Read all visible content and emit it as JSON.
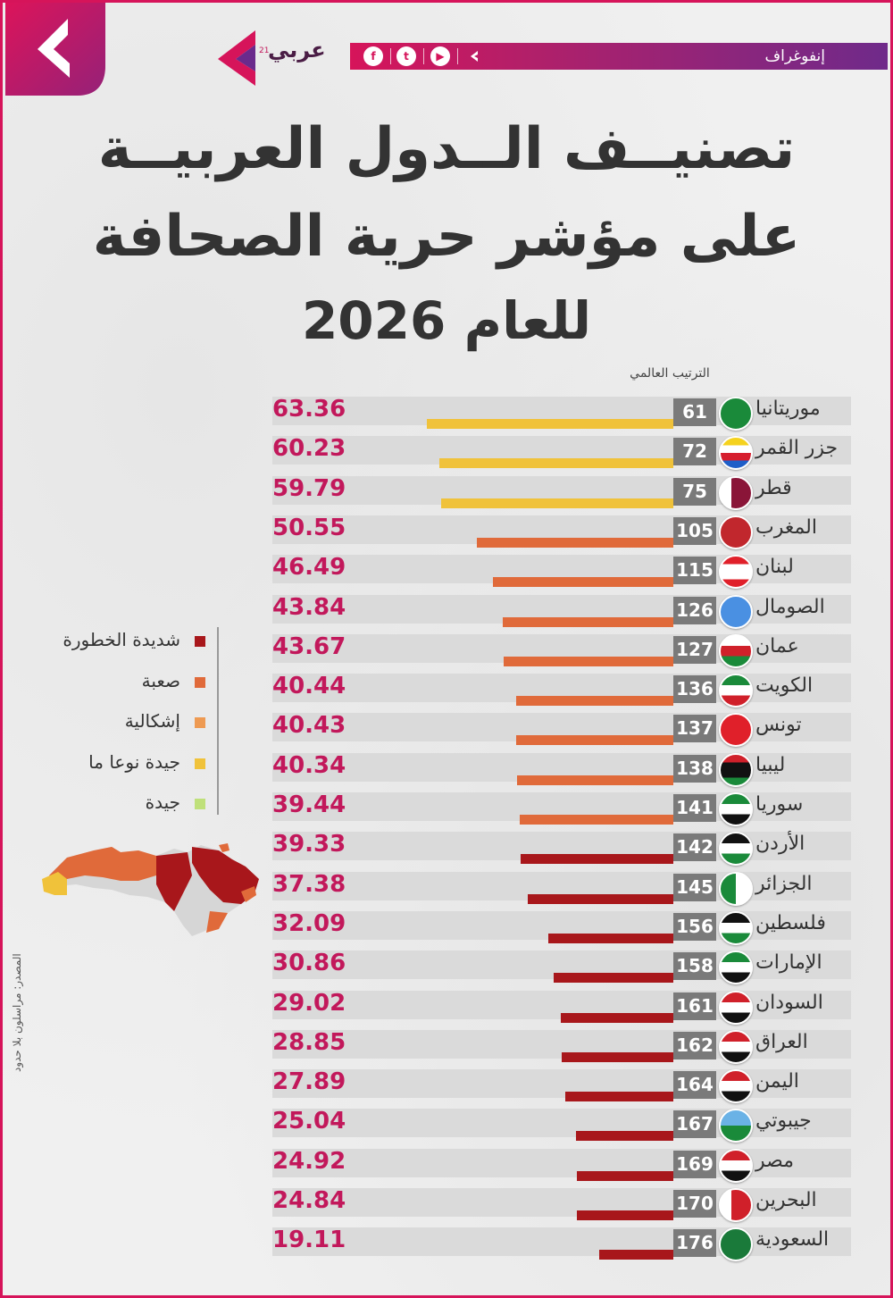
{
  "header": {
    "brand_name": "عربي",
    "brand_superscript": "21",
    "section_label": "إنفوغراف",
    "social_icons": [
      "facebook-icon",
      "twitter-icon",
      "youtube-icon",
      "arabi21-icon"
    ]
  },
  "title": {
    "line1": "تصنيــف الــدول العربيــة",
    "line2": "على مؤشر حرية الصحافة",
    "line3": "للعام 2026"
  },
  "rank_header": "الترتيب العالمي",
  "legend": [
    {
      "label": "شديدة الخطورة",
      "color": "#a8171b"
    },
    {
      "label": "صعبة",
      "color": "#e06a3a"
    },
    {
      "label": "إشكالية",
      "color": "#ee9a52"
    },
    {
      "label": "جيدة نوعا ما",
      "color": "#f0c23a"
    },
    {
      "label": "جيدة",
      "color": "#bfe07a"
    }
  ],
  "source_text": "المصدر: مراسلون بلا حدود",
  "chart_data": {
    "type": "bar",
    "value_label": "score",
    "rows": [
      {
        "country": "موريتانيا",
        "rank": 61,
        "score": 63.36,
        "category": "جيدة نوعا ما",
        "color": "#f0c23a"
      },
      {
        "country": "جزر القمر",
        "rank": 72,
        "score": 60.23,
        "category": "جيدة نوعا ما",
        "color": "#f0c23a"
      },
      {
        "country": "قطر",
        "rank": 75,
        "score": 59.79,
        "category": "جيدة نوعا ما",
        "color": "#f0c23a"
      },
      {
        "country": "المغرب",
        "rank": 105,
        "score": 50.55,
        "category": "صعبة",
        "color": "#e06a3a"
      },
      {
        "country": "لبنان",
        "rank": 115,
        "score": 46.49,
        "category": "صعبة",
        "color": "#e06a3a"
      },
      {
        "country": "الصومال",
        "rank": 126,
        "score": 43.84,
        "category": "صعبة",
        "color": "#e06a3a"
      },
      {
        "country": "عمان",
        "rank": 127,
        "score": 43.67,
        "category": "صعبة",
        "color": "#e06a3a"
      },
      {
        "country": "الكويت",
        "rank": 136,
        "score": 40.44,
        "category": "صعبة",
        "color": "#e06a3a"
      },
      {
        "country": "تونس",
        "rank": 137,
        "score": 40.43,
        "category": "صعبة",
        "color": "#e06a3a"
      },
      {
        "country": "ليبيا",
        "rank": 138,
        "score": 40.34,
        "category": "صعبة",
        "color": "#e06a3a"
      },
      {
        "country": "سوريا",
        "rank": 141,
        "score": 39.44,
        "category": "صعبة",
        "color": "#e06a3a"
      },
      {
        "country": "الأردن",
        "rank": 142,
        "score": 39.33,
        "category": "شديدة الخطورة",
        "color": "#a8171b"
      },
      {
        "country": "الجزائر",
        "rank": 145,
        "score": 37.38,
        "category": "شديدة الخطورة",
        "color": "#a8171b"
      },
      {
        "country": "فلسطين",
        "rank": 156,
        "score": 32.09,
        "category": "شديدة الخطورة",
        "color": "#a8171b"
      },
      {
        "country": "الإمارات",
        "rank": 158,
        "score": 30.86,
        "category": "شديدة الخطورة",
        "color": "#a8171b"
      },
      {
        "country": "السودان",
        "rank": 161,
        "score": 29.02,
        "category": "شديدة الخطورة",
        "color": "#a8171b"
      },
      {
        "country": "العراق",
        "rank": 162,
        "score": 28.85,
        "category": "شديدة الخطورة",
        "color": "#a8171b"
      },
      {
        "country": "اليمن",
        "rank": 164,
        "score": 27.89,
        "category": "شديدة الخطورة",
        "color": "#a8171b"
      },
      {
        "country": "جيبوتي",
        "rank": 167,
        "score": 25.04,
        "category": "شديدة الخطورة",
        "color": "#a8171b"
      },
      {
        "country": "مصر",
        "rank": 169,
        "score": 24.92,
        "category": "شديدة الخطورة",
        "color": "#a8171b"
      },
      {
        "country": "البحرين",
        "rank": 170,
        "score": 24.84,
        "category": "شديدة الخطورة",
        "color": "#a8171b"
      },
      {
        "country": "السعودية",
        "rank": 176,
        "score": 19.11,
        "category": "شديدة الخطورة",
        "color": "#a8171b"
      }
    ]
  }
}
